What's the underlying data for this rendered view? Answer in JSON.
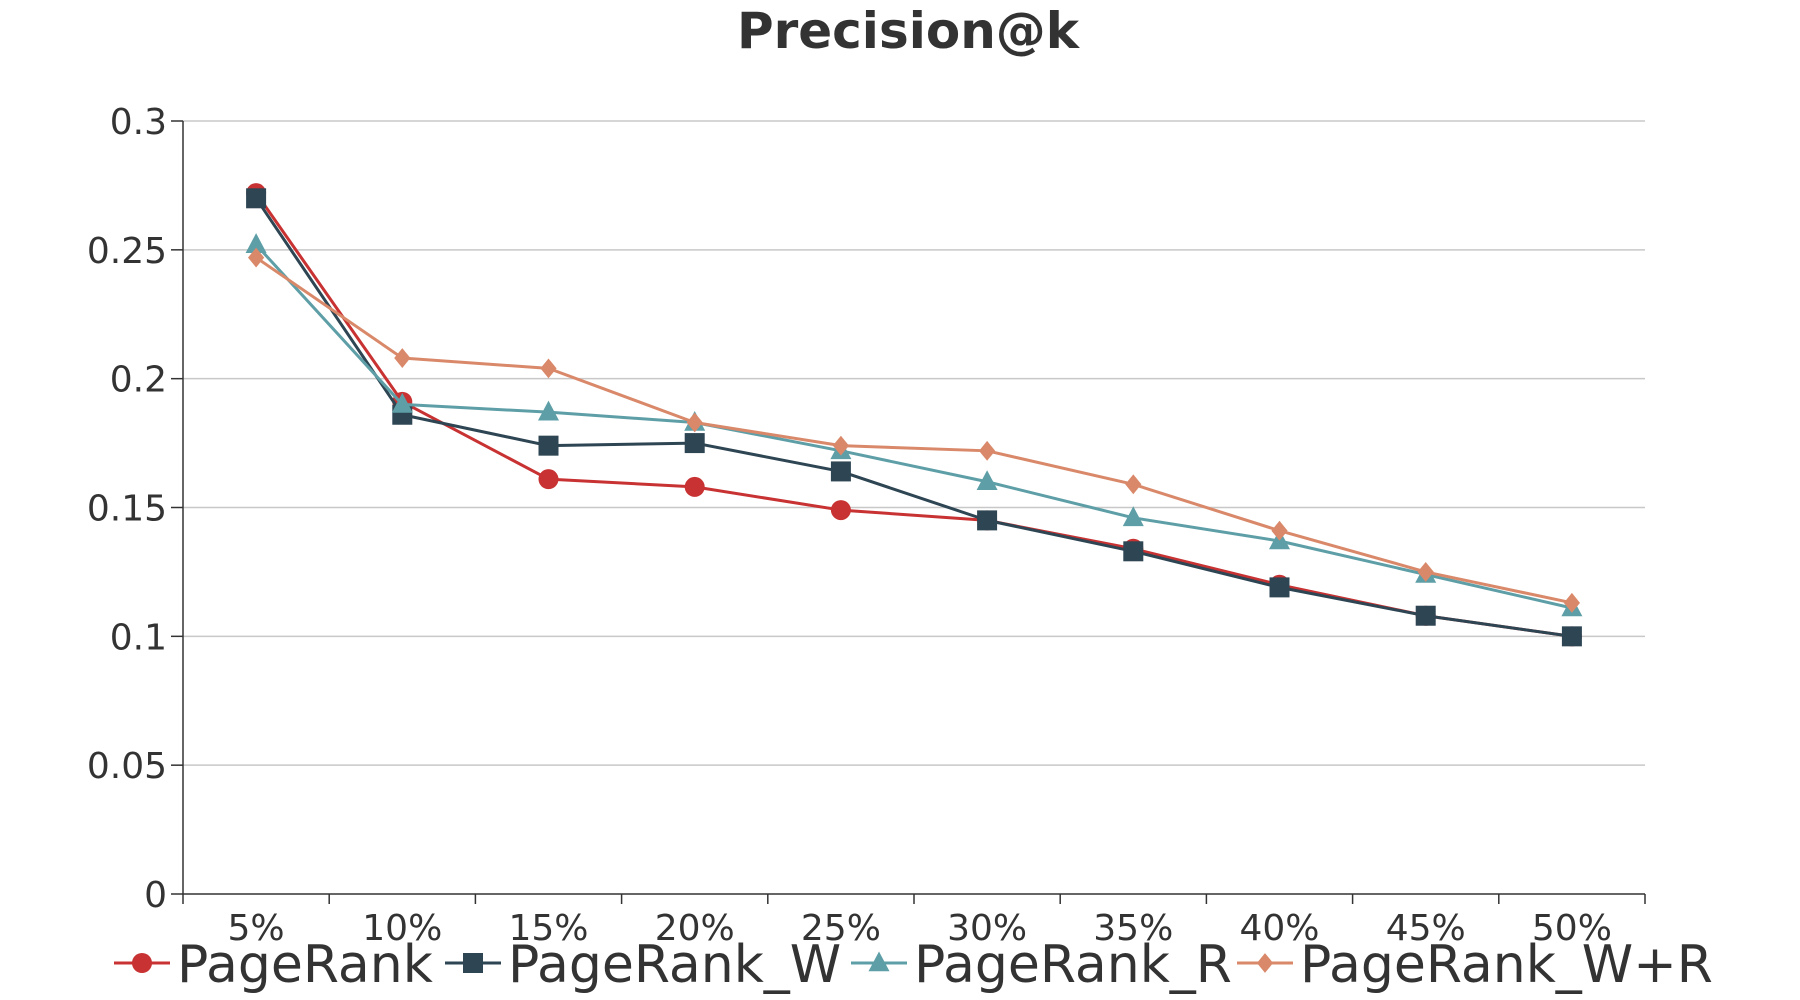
{
  "chart_data": {
    "type": "line",
    "title": "Precision@k",
    "xlabel": "",
    "ylabel": "",
    "categories": [
      "5%",
      "10%",
      "15%",
      "20%",
      "25%",
      "30%",
      "35%",
      "40%",
      "45%",
      "50%"
    ],
    "ylim": [
      0,
      0.3
    ],
    "yticks": [
      0,
      0.05,
      0.1,
      0.15,
      0.2,
      0.25,
      0.3
    ],
    "ytick_labels": [
      "0",
      "0.05",
      "0.1",
      "0.15",
      "0.2",
      "0.25",
      "0.3"
    ],
    "grid": true,
    "legend_position": "bottom",
    "series": [
      {
        "name": "PageRank",
        "color": "#C83232",
        "marker": "circle",
        "values": [
          0.272,
          0.191,
          0.161,
          0.158,
          0.149,
          0.145,
          0.134,
          0.12,
          0.108,
          0.1
        ]
      },
      {
        "name": "PageRank_W",
        "color": "#2E4553",
        "marker": "square",
        "values": [
          0.27,
          0.186,
          0.174,
          0.175,
          0.164,
          0.145,
          0.133,
          0.119,
          0.108,
          0.1
        ]
      },
      {
        "name": "PageRank_R",
        "color": "#5E9FA7",
        "marker": "triangle",
        "values": [
          0.252,
          0.19,
          0.187,
          0.183,
          0.172,
          0.16,
          0.146,
          0.137,
          0.124,
          0.111
        ]
      },
      {
        "name": "PageRank_W+R",
        "color": "#D9896A",
        "marker": "diamond",
        "values": [
          0.247,
          0.208,
          0.204,
          0.183,
          0.174,
          0.172,
          0.159,
          0.141,
          0.125,
          0.113
        ]
      }
    ]
  }
}
